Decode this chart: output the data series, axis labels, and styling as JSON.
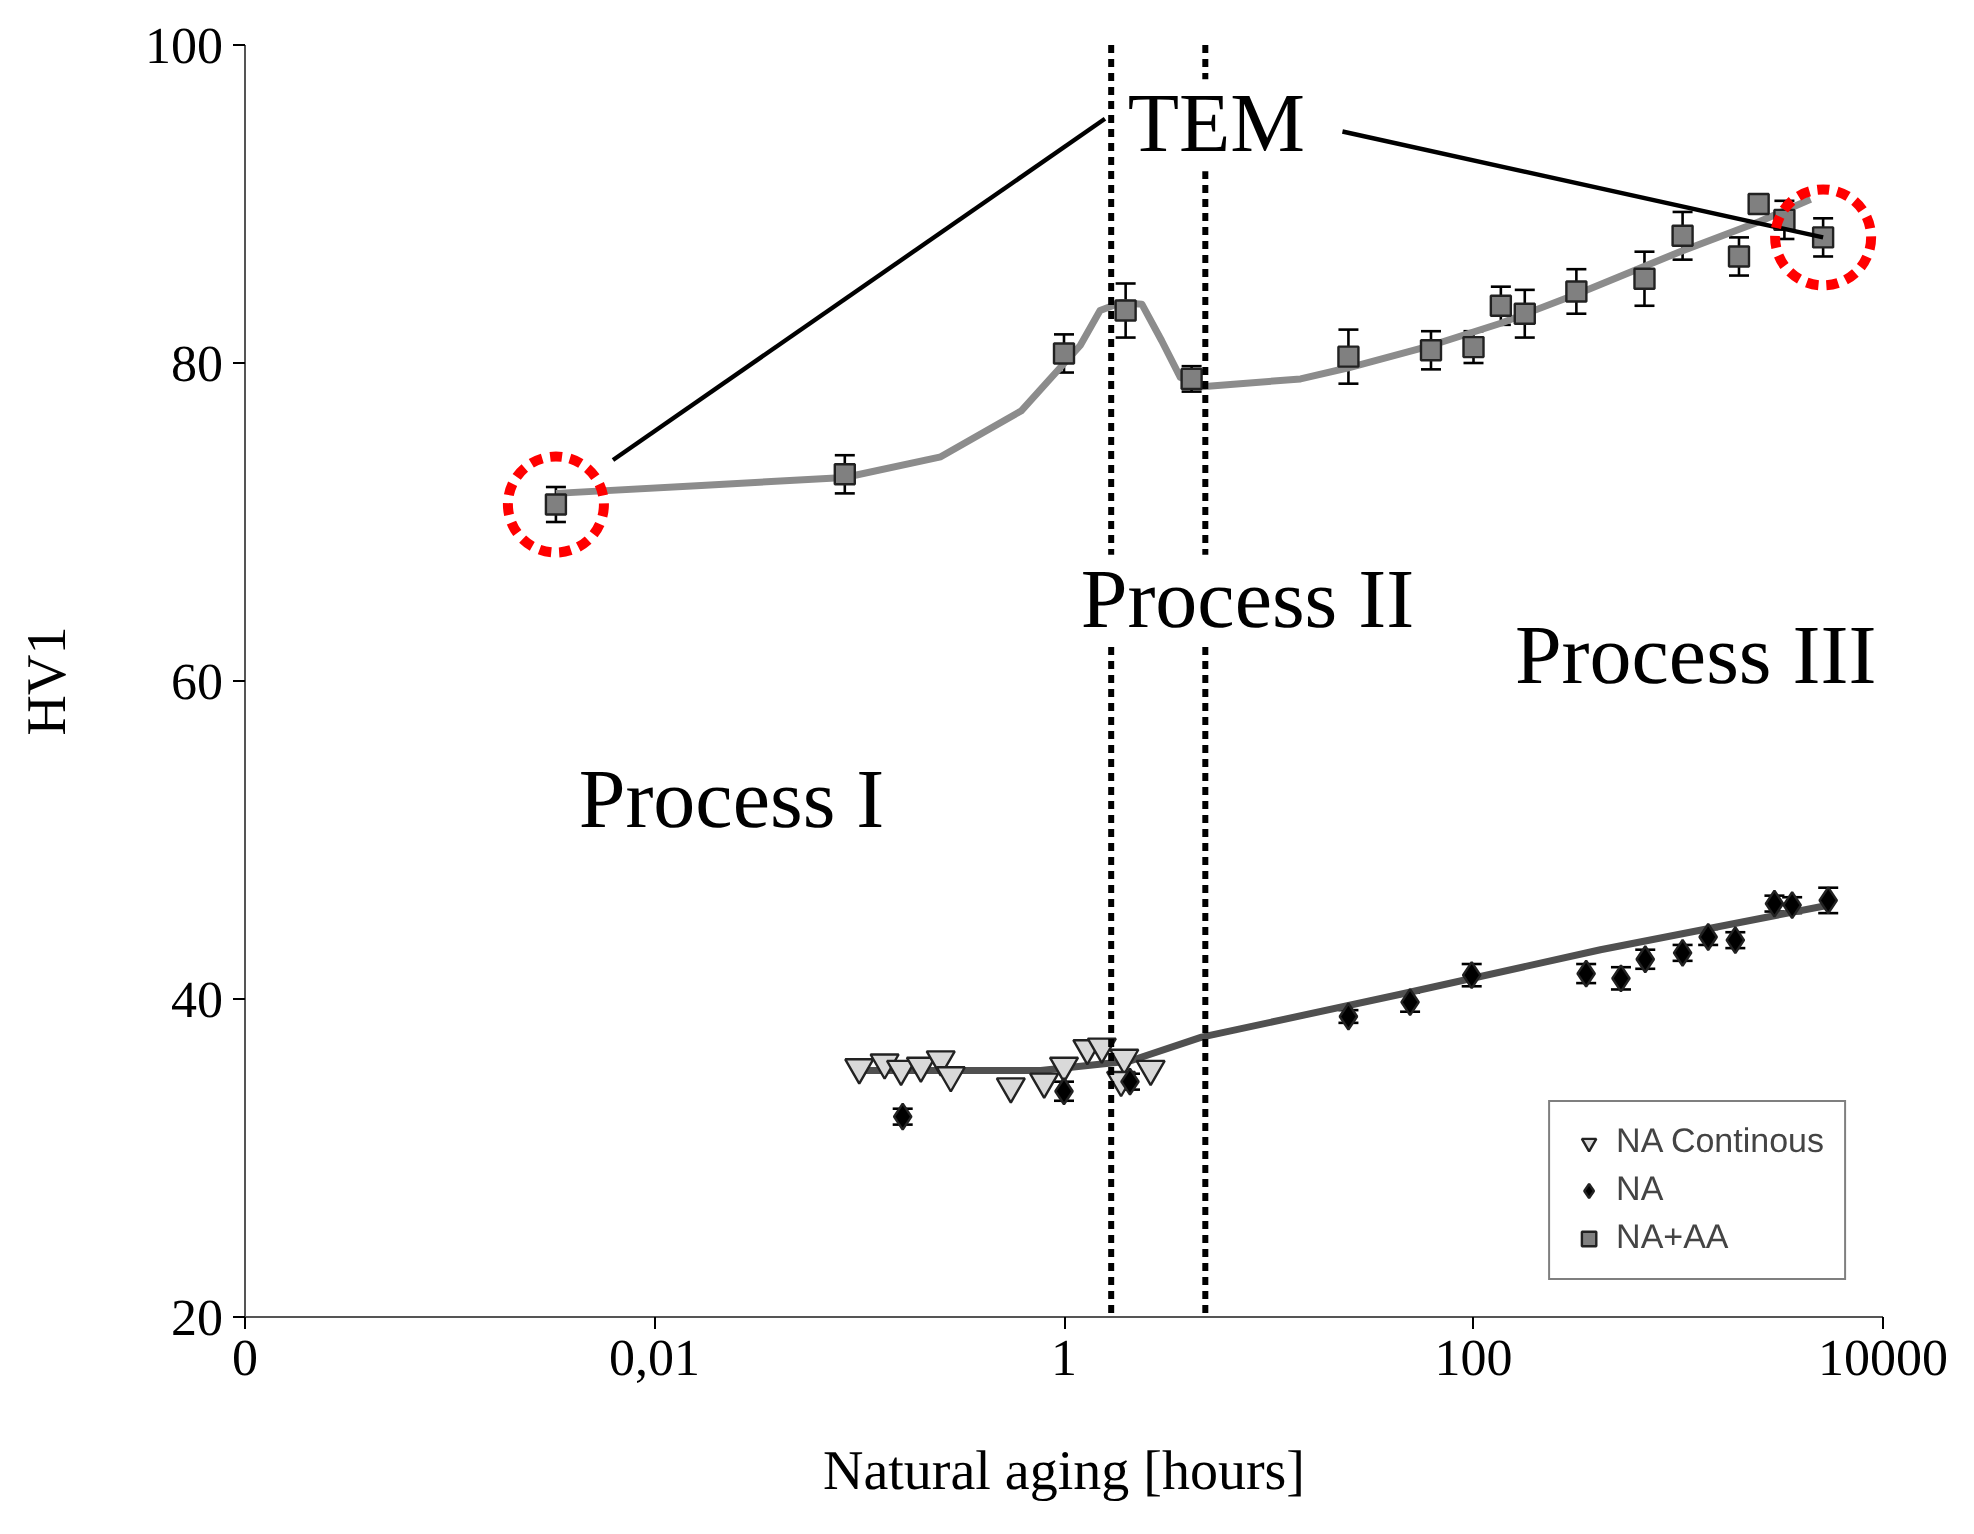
{
  "chart_data": {
    "type": "scatter",
    "xlabel": "Natural aging [hours]",
    "ylabel": "HV1",
    "log": "x",
    "grid": false,
    "legend": "bottom right",
    "xlim": [
      0.0001,
      10000
    ],
    "ylim": [
      20,
      100
    ],
    "xticks": [
      {
        "value": 0.0001,
        "label": "0"
      },
      {
        "value": 0.01,
        "label": "0,01"
      },
      1,
      100,
      10000
    ],
    "yticks": [
      20,
      40,
      60,
      80,
      100
    ],
    "series": [
      {
        "name": "NA Continous",
        "marker": "triangle",
        "color": "#d9d9d9",
        "x": [
          0.1,
          0.133,
          0.16,
          0.2,
          0.25,
          0.28,
          0.55,
          0.8,
          1.0,
          1.3,
          1.53,
          1.97,
          1.9,
          2.65
        ],
        "values": [
          35.7,
          36.0,
          35.6,
          35.8,
          36.2,
          35.2,
          34.5,
          34.8,
          35.8,
          36.9,
          37.0,
          36.3,
          34.9,
          35.6
        ]
      },
      {
        "name": "NA",
        "marker": "diamond",
        "color": "#000000",
        "x": [
          0.163,
          1.0,
          2.1,
          24.5,
          49,
          98,
          355,
          525,
          690,
          1050,
          1400,
          1900,
          2950,
          3600,
          5400
        ],
        "values": [
          32.6,
          34.2,
          34.8,
          38.9,
          39.8,
          41.5,
          41.6,
          41.3,
          42.5,
          42.9,
          43.9,
          43.7,
          46.0,
          45.9,
          46.2
        ],
        "errors": [
          0.5,
          0.6,
          0.5,
          0.4,
          0.6,
          0.7,
          0.6,
          0.7,
          0.6,
          0.5,
          0.5,
          0.5,
          0.5,
          0.5,
          0.8
        ]
      },
      {
        "name": "NA+AA",
        "marker": "square",
        "color": "#808080",
        "x": [
          0.0033,
          0.085,
          1.0,
          2.0,
          4.2,
          24.5,
          62,
          100,
          136,
          178,
          318,
          684,
          1050,
          1980,
          2470,
          3300,
          5100
        ],
        "values": [
          71.1,
          73.0,
          80.6,
          83.3,
          79.0,
          80.4,
          80.8,
          81.0,
          83.6,
          83.1,
          84.5,
          85.3,
          88.0,
          86.7,
          90.0,
          89.0,
          87.9
        ],
        "errors": [
          1.1,
          1.2,
          1.2,
          1.7,
          0.8,
          1.7,
          1.2,
          1.0,
          1.2,
          1.5,
          1.4,
          1.7,
          1.5,
          1.2,
          0.6,
          1.2,
          1.2
        ]
      },
      {
        "type": "line",
        "color": "#8c8c8c",
        "x": [
          0.0033,
          0.0169,
          0.085,
          0.25,
          0.62,
          1.2,
          1.5,
          1.9,
          2.4,
          3.0,
          3.7,
          4.7,
          14.3,
          24.5,
          62,
          136,
          330,
          1020,
          2500,
          4430
        ],
        "values": [
          71.8,
          72.3,
          72.8,
          74.1,
          77.0,
          81.1,
          83.3,
          83.8,
          83.7,
          81.4,
          79.1,
          78.5,
          79.0,
          79.7,
          81.1,
          82.5,
          84.4,
          87.0,
          88.9,
          90.3
        ]
      },
      {
        "type": "line",
        "color": "#505050",
        "x": [
          0.1,
          0.77,
          2.1,
          4.7,
          44,
          417,
          5400
        ],
        "values": [
          35.5,
          35.5,
          36.1,
          37.6,
          40.3,
          43.1,
          45.9
        ]
      }
    ],
    "ref_lines": [
      {
        "axis": "x",
        "value": 1.7,
        "line_style": "dashed",
        "color": "#000000"
      },
      {
        "axis": "x",
        "value": 4.9,
        "line_style": "dashed",
        "color": "#000000"
      }
    ],
    "annotations": [
      {
        "text": "TEM",
        "x": 5100,
        "y": 87.9
      },
      "Process I",
      "Process II",
      "Process III"
    ]
  }
}
